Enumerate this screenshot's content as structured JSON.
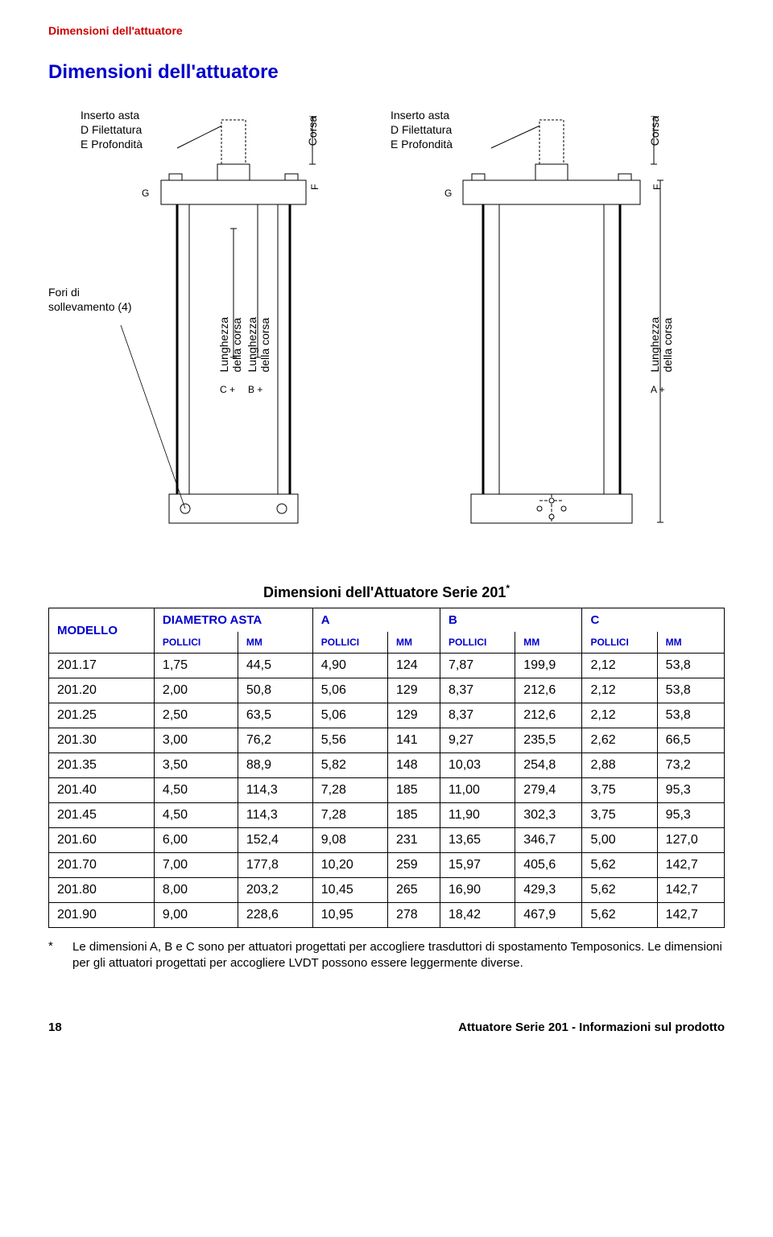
{
  "header": {
    "running_head": "Dimensioni dell'attuatore"
  },
  "title": "Dimensioni dell'attuatore",
  "diagram": {
    "insert_label_1": "Inserto asta\nD Filettatura\nE Profondità",
    "insert_label_2": "Inserto asta\nD Filettatura\nE Profondità",
    "corsa": "Corsa",
    "lift_holes": "Fori di\nsollevamento (4)",
    "len_stroke": "Lunghezza\ndella corsa",
    "letters": {
      "F": "F",
      "G": "G",
      "C": "C",
      "B": "B",
      "A": "A",
      "plus": "+"
    }
  },
  "table": {
    "title": "Dimensioni dell'Attuatore Serie 201",
    "asterisk": "*",
    "headers": {
      "model": "MODELLO",
      "diameter": "DIAMETRO ASTA",
      "A": "A",
      "B": "B",
      "C": "C",
      "in": "POLLICI",
      "mm": "MM"
    },
    "rows": [
      [
        "201.17",
        "1,75",
        "44,5",
        "4,90",
        "124",
        "7,87",
        "199,9",
        "2,12",
        "53,8"
      ],
      [
        "201.20",
        "2,00",
        "50,8",
        "5,06",
        "129",
        "8,37",
        "212,6",
        "2,12",
        "53,8"
      ],
      [
        "201.25",
        "2,50",
        "63,5",
        "5,06",
        "129",
        "8,37",
        "212,6",
        "2,12",
        "53,8"
      ],
      [
        "201.30",
        "3,00",
        "76,2",
        "5,56",
        "141",
        "9,27",
        "235,5",
        "2,62",
        "66,5"
      ],
      [
        "201.35",
        "3,50",
        "88,9",
        "5,82",
        "148",
        "10,03",
        "254,8",
        "2,88",
        "73,2"
      ],
      [
        "201.40",
        "4,50",
        "114,3",
        "7,28",
        "185",
        "11,00",
        "279,4",
        "3,75",
        "95,3"
      ],
      [
        "201.45",
        "4,50",
        "114,3",
        "7,28",
        "185",
        "11,90",
        "302,3",
        "3,75",
        "95,3"
      ],
      [
        "201.60",
        "6,00",
        "152,4",
        "9,08",
        "231",
        "13,65",
        "346,7",
        "5,00",
        "127,0"
      ],
      [
        "201.70",
        "7,00",
        "177,8",
        "10,20",
        "259",
        "15,97",
        "405,6",
        "5,62",
        "142,7"
      ],
      [
        "201.80",
        "8,00",
        "203,2",
        "10,45",
        "265",
        "16,90",
        "429,3",
        "5,62",
        "142,7"
      ],
      [
        "201.90",
        "9,00",
        "228,6",
        "10,95",
        "278",
        "18,42",
        "467,9",
        "5,62",
        "142,7"
      ]
    ],
    "colors": {
      "header_fg": "#0000cc",
      "border": "#000000"
    }
  },
  "footnote": {
    "marker": "*",
    "text": "Le dimensioni A, B e C sono per attuatori progettati per accogliere trasduttori di spostamento Temposonics. Le dimensioni per gli attuatori progettati per accogliere LVDT possono essere leggermente diverse."
  },
  "footer": {
    "page": "18",
    "right": "Attuatore Serie 201 - Informazioni sul prodotto"
  }
}
